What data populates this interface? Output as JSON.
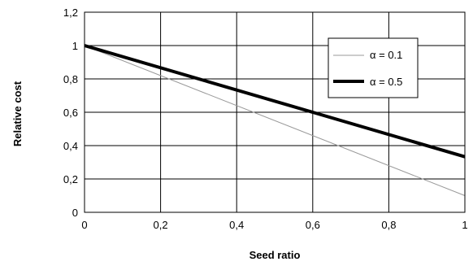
{
  "chart_data": {
    "type": "line",
    "title": "",
    "xlabel": "Seed ratio",
    "ylabel": "Relative cost",
    "xlim": [
      0,
      1
    ],
    "ylim": [
      0,
      1.2
    ],
    "x_ticks": [
      "0",
      "0,2",
      "0,4",
      "0,6",
      "0,8",
      "1"
    ],
    "y_ticks": [
      "0",
      "0,2",
      "0,4",
      "0,6",
      "0,8",
      "1",
      "1,2"
    ],
    "grid": true,
    "legend_position": "top-right",
    "series": [
      {
        "name": "α = 0.1",
        "color": "#999999",
        "style": "thin",
        "x": [
          0,
          1
        ],
        "y": [
          1,
          0.1
        ]
      },
      {
        "name": "α = 0.5",
        "color": "#000000",
        "style": "thick",
        "x": [
          0,
          0.6,
          1
        ],
        "y": [
          1,
          0.6,
          0.333
        ]
      }
    ]
  }
}
